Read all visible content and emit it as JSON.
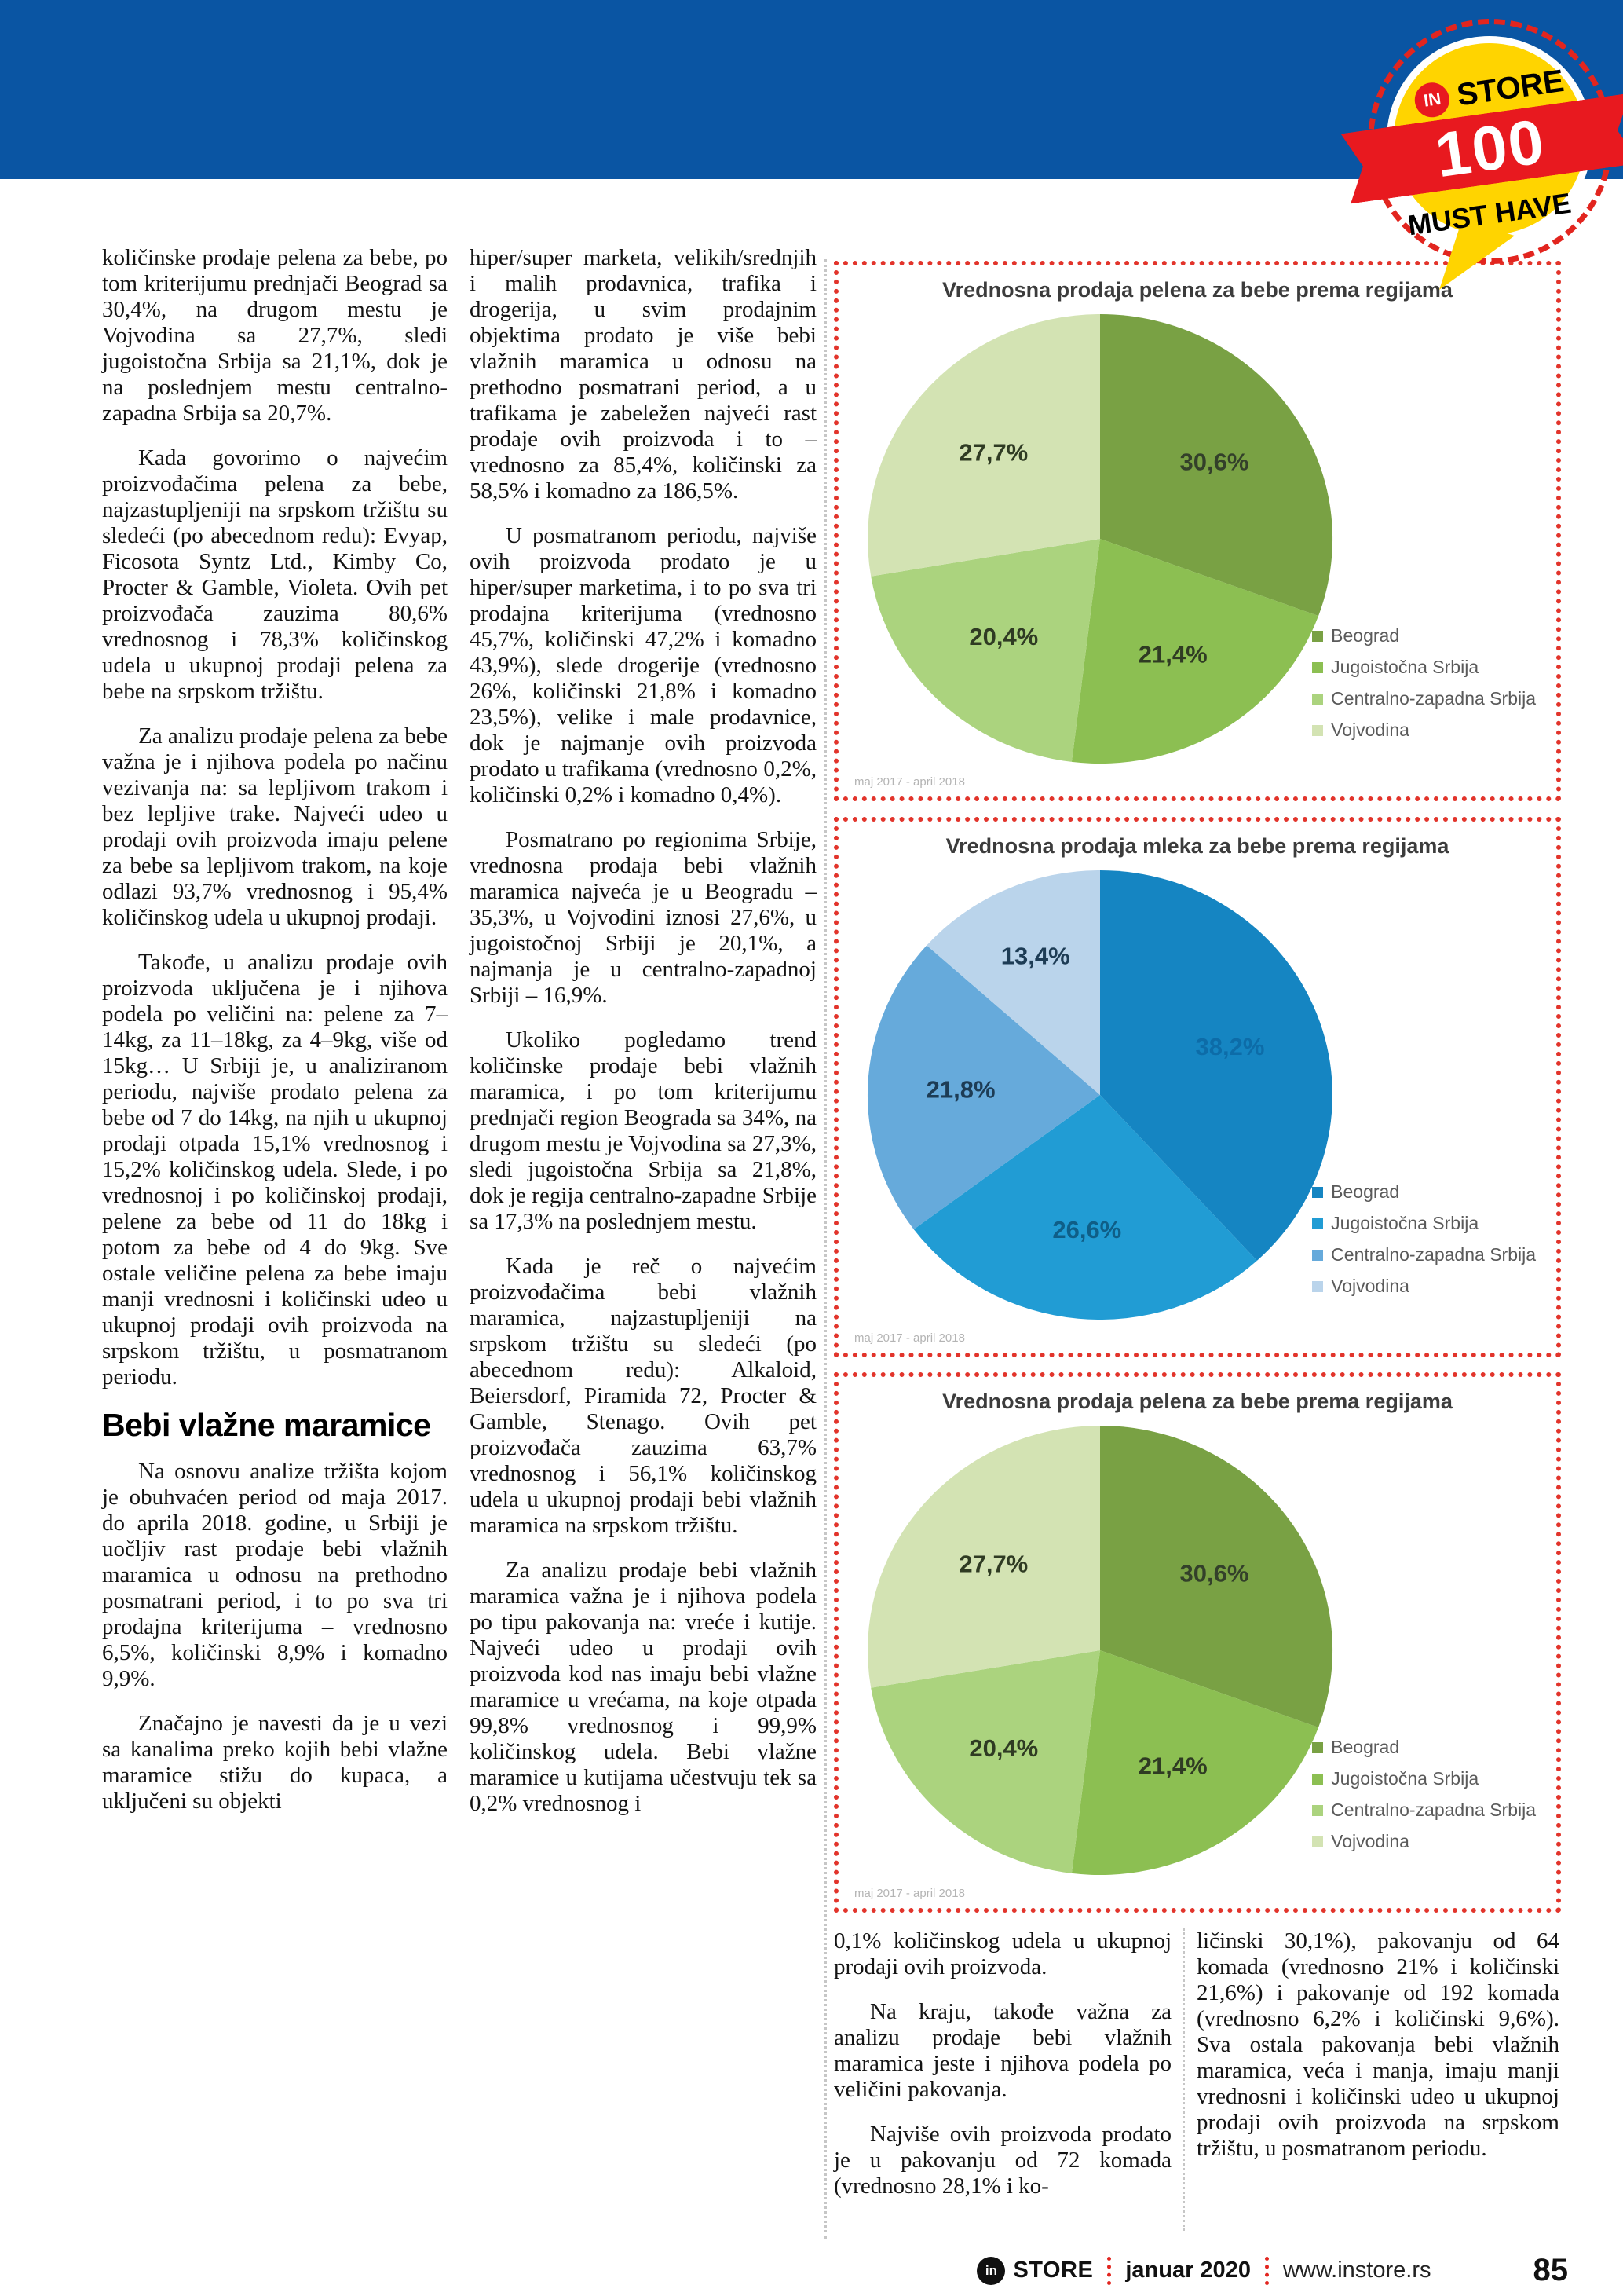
{
  "badge": {
    "in": "IN",
    "store": "STORE",
    "number": "100",
    "tagline": "MUST HAVE"
  },
  "columns": {
    "col1": {
      "paragraphs": [
        "količinske prodaje pelena za bebe, po tom kriterijumu prednjači Beograd sa 30,4%, na drugom mestu je Vojvodina sa 27,7%, sledi jugoistočna Srbija sa 21,1%, dok je na poslednjem mestu centralno-zapadna Srbija sa 20,7%.",
        "Kada govorimo o najvećim proizvođačima pelena za bebe, najzastupljeniji na srpskom tržištu su sledeći (po abecednom redu): Evyap, Ficosota Syntz Ltd., Kimby Co, Procter & Gamble, Violeta. Ovih pet proizvođača zauzima 80,6% vrednosnog i 78,3% količinskog udela u ukupnoj prodaji pelena za bebe na srpskom tržištu.",
        "Za analizu prodaje pelena za bebe važna je i njihova podela po načinu vezivanja na: sa lepljivom trakom i bez lepljive trake. Najveći udeo u prodaji ovih proizvoda imaju pelene za bebe sa lepljivom trakom, na koje odlazi 93,7% vrednosnog i 95,4% količinskog udela u ukupnoj prodaji.",
        "Takođe, u analizu prodaje ovih proizvoda uključena je i njihova podela po veličini na: pelene za 7–14kg, za 11–18kg, za 4–9kg, više od 15kg… U Srbiji je, u analiziranom periodu, najviše prodato pelena za bebe od 7 do 14kg, na njih u ukupnoj prodaji otpada 15,1% vrednosnog i 15,2% količinskog udela. Slede, i po vrednosnoj i po količinskoj prodaji, pelene za bebe od 11 do 18kg i potom za bebe od 4 do 9kg. Sve ostale veličine pelena za bebe imaju manji vrednosni i količinski udeo u ukupnoj prodaji ovih proizvoda na srpskom tržištu, u posmatranom periodu."
      ],
      "heading": "Bebi vlažne maramice",
      "paragraphs_after": [
        "Na osnovu analize tržišta kojom je obuhvaćen period od maja 2017. do aprila 2018. godine, u Srbiji je uočljiv rast prodaje bebi vlažnih maramica u odnosu na prethodno posmatrani period, i to po sva tri prodajna kriterijuma – vrednosno 6,5%, količinski 8,9% i komadno 9,9%.",
        "Značajno je navesti da je u vezi sa kanalima preko kojih bebi vlažne maramice stižu do kupaca, a uključeni su objekti"
      ]
    },
    "col2": {
      "paragraphs": [
        "hiper/super marketa, velikih/srednjih i malih prodavnica, trafika i drogerija, u svim prodajnim objektima prodato je više bebi vlažnih maramica u odnosu na prethodno posmatrani period, a u trafikama je zabeležen najveći rast prodaje ovih proizvoda i to – vrednosno za 85,4%, količinski za 58,5% i komadno za 186,5%.",
        "U posmatranom periodu, najviše ovih proizvoda prodato je u hiper/super marketima, i to po sva tri prodajna kriterijuma (vrednosno 45,7%, količinski 47,2% i komadno 43,9%), slede drogerije (vrednosno 26%, količinski 21,8% i komadno 23,5%), velike i male prodavnice, dok je najmanje ovih proizvoda prodato u trafikama (vrednosno 0,2%, količinski 0,2% i komadno 0,4%).",
        "Posmatrano po regionima Srbije, vrednosna prodaja bebi vlažnih maramica najveća je u Beogradu – 35,3%, u Vojvodini iznosi 27,6%, u jugoistočnoj Srbiji je 20,1%, a najmanja je u centralno-zapadnoj Srbiji – 16,9%.",
        "Ukoliko pogledamo trend količinske prodaje bebi vlažnih maramica, i po tom kriterijumu prednjači region Beograda sa 34%, na drugom mestu je Vojvodina sa 27,3%, sledi jugoistočna Srbija sa 21,8%, dok je regija centralno-zapadne Srbije sa 17,3% na poslednjem mestu.",
        "Kada je reč o najvećim proizvođačima bebi vlažnih maramica, najzastupljeniji na srpskom tržištu su sledeći (po abecednom redu): Alkaloid, Beiersdorf, Piramida 72, Procter & Gamble, Stenago. Ovih pet proizvođača zauzima 63,7% vrednosnog i 56,1% količinskog udela u ukupnoj prodaji bebi vlažnih maramica na srpskom tržištu.",
        "Za analizu prodaje bebi vlažnih maramica važna je i njihova podela po tipu pakovanja na: vreće i kutije. Najveći udeo u prodaji ovih proizvoda kod nas imaju bebi vlažne maramice u vrećama, na koje otpada 99,8% vrednosnog i 99,9% količinskog udela. Bebi vlažne maramice u kutijama učestvuju tek sa 0,2% vrednosnog i"
      ]
    },
    "col3": {
      "paragraphs": [
        "0,1% količinskog udela u ukupnoj prodaji ovih proizvoda.",
        "Na kraju, takođe važna za analizu prodaje bebi vlažnih maramica jeste i njihova podela po veličini pakovanja.",
        "Najviše ovih proizvoda prodato je u pakovanju od 72 komada (vrednosno 28,1% i ko-"
      ]
    },
    "col4": {
      "paragraphs": [
        "ličinski 30,1%), pakovanju od 64 komada (vrednosno 21% i količinski 21,6%) i pakovanje od 192 komada (vrednosno 6,2% i količinski 9,6%). Sva ostala pakovanja bebi vlažnih maramica, veća i manja, imaju manji vrednosni i količinski udeo u ukupnoj prodaji ovih proizvoda na srpskom tržištu, u posmatranom periodu."
      ]
    }
  },
  "chart_data": [
    {
      "type": "pie",
      "title": "Vrednosna prodaja pelena za bebe prema regijama",
      "caption": "maj 2017 - april 2018",
      "legend_position": "right-bottom",
      "slices": [
        {
          "name": "Beograd",
          "value": 30.6,
          "label": "30,6%",
          "color": "#79a144",
          "label_color": "#33402a"
        },
        {
          "name": "Jugoistočna Srbija",
          "value": 21.4,
          "label": "21,4%",
          "color": "#8cbf52",
          "label_color": "#2f3b23"
        },
        {
          "name": "Centralno-zapadna Srbija",
          "value": 20.4,
          "label": "20,4%",
          "color": "#abd37e",
          "label_color": "#2f3b23"
        },
        {
          "name": "Vojvodina",
          "value": 27.7,
          "label": "27,7%",
          "color": "#d3e3b3",
          "label_color": "#2f3b23"
        }
      ]
    },
    {
      "type": "pie",
      "title": "Vrednosna prodaja mleka za bebe prema regijama",
      "caption": "maj 2017 - april 2018",
      "legend_position": "right-bottom",
      "slices": [
        {
          "name": "Beograd",
          "value": 38.2,
          "label": "38,2%",
          "color": "#1585c2",
          "label_color": "#0d6ca8"
        },
        {
          "name": "Jugoistočna Srbija",
          "value": 26.6,
          "label": "26,6%",
          "color": "#219cd4",
          "label_color": "#0f5e87"
        },
        {
          "name": "Centralno-zapadna Srbija",
          "value": 21.8,
          "label": "21,8%",
          "color": "#66aadb",
          "label_color": "#1d3c55"
        },
        {
          "name": "Vojvodina",
          "value": 13.4,
          "label": "13,4%",
          "color": "#bad4eb",
          "label_color": "#1d3c55",
          "label_r": 0.68
        }
      ]
    },
    {
      "type": "pie",
      "title": "Vrednosna prodaja pelena za bebe prema regijama",
      "caption": "maj 2017 - april 2018",
      "legend_position": "right-bottom",
      "slices": [
        {
          "name": "Beograd",
          "value": 30.6,
          "label": "30,6%",
          "color": "#79a144",
          "label_color": "#33402a"
        },
        {
          "name": "Jugoistočna Srbija",
          "value": 21.4,
          "label": "21,4%",
          "color": "#8cbf52",
          "label_color": "#2f3b23"
        },
        {
          "name": "Centralno-zapadna Srbija",
          "value": 20.4,
          "label": "20,4%",
          "color": "#abd37e",
          "label_color": "#2f3b23"
        },
        {
          "name": "Vojvodina",
          "value": 27.7,
          "label": "27,7%",
          "color": "#d3e3b3",
          "label_color": "#2f3b23"
        }
      ]
    }
  ],
  "footer": {
    "brand_in": "in",
    "brand": "STORE",
    "date": "januar 2020",
    "site": "www.instore.rs",
    "page_number": "85"
  }
}
